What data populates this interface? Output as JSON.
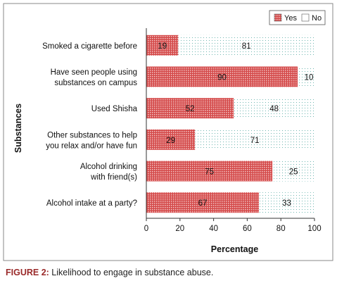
{
  "chart_data": {
    "type": "bar",
    "orientation": "horizontal",
    "stacked": true,
    "categories": [
      "Smoked a cigarette before",
      "Have seen people using substances on campus",
      "Used Shisha",
      "Other substances to help you relax and/or have fun",
      "Alcohol drinking with friend(s)",
      "Alcohol intake at a party?"
    ],
    "category_lines": [
      [
        "Smoked a cigarette before"
      ],
      [
        "Have seen people using",
        "substances on campus"
      ],
      [
        "Used Shisha"
      ],
      [
        "Other substances to help",
        "you relax and/or have fun"
      ],
      [
        "Alcohol drinking",
        "with friend(s)"
      ],
      [
        "Alcohol intake at a party?"
      ]
    ],
    "series": [
      {
        "name": "Yes",
        "values": [
          19,
          90,
          52,
          29,
          75,
          67
        ],
        "color": "#cc3b3b",
        "pattern": "dense red dots"
      },
      {
        "name": "No",
        "values": [
          81,
          10,
          48,
          71,
          25,
          33
        ],
        "color": "#6fb6b0",
        "pattern": "sparse teal dots"
      }
    ],
    "xlabel": "Percentage",
    "ylabel": "Substances",
    "xlim": [
      0,
      100
    ],
    "xticks": [
      0,
      20,
      40,
      60,
      80,
      100
    ],
    "legend_position": "top-right",
    "grid": false
  },
  "caption": {
    "label": "FIGURE 2:",
    "text": " Likelihood to engage in substance abuse."
  }
}
